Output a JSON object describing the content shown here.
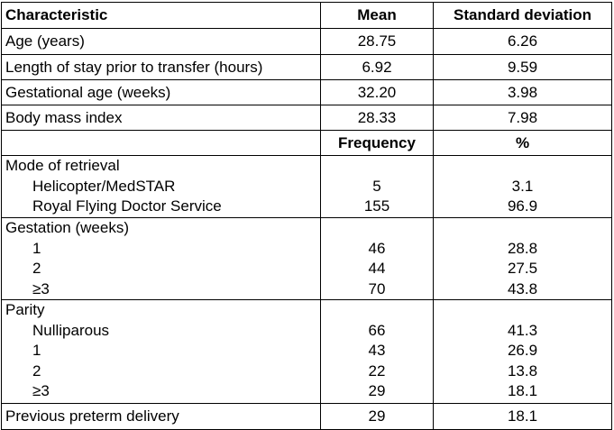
{
  "table": {
    "header": [
      "Characteristic",
      "Mean",
      "Standard deviation"
    ],
    "continuous_rows": [
      [
        "Age (years)",
        "28.75",
        "6.26"
      ],
      [
        "Length of stay prior to transfer (hours)",
        "6.92",
        "9.59"
      ],
      [
        "Gestational age (weeks)",
        "32.20",
        "3.98"
      ],
      [
        "Body mass index",
        "28.33",
        "7.98"
      ]
    ],
    "subheader": [
      "Frequency",
      "%"
    ],
    "groups": [
      {
        "title": "Mode of retrieval",
        "items": [
          [
            "Helicopter/MedSTAR",
            "5",
            "3.1"
          ],
          [
            "Royal Flying Doctor Service",
            "155",
            "96.9"
          ]
        ]
      },
      {
        "title": "Gestation (weeks)",
        "items": [
          [
            "1",
            "46",
            "28.8"
          ],
          [
            "2",
            "44",
            "27.5"
          ],
          [
            "≥3",
            "70",
            "43.8"
          ]
        ]
      },
      {
        "title": "Parity",
        "items": [
          [
            "Nulliparous",
            "66",
            "41.3"
          ],
          [
            "1",
            "43",
            "26.9"
          ],
          [
            "2",
            "22",
            "13.8"
          ],
          [
            "≥3",
            "29",
            "18.1"
          ]
        ]
      }
    ],
    "last_row": [
      "Previous preterm delivery",
      "29",
      "18.1"
    ]
  }
}
